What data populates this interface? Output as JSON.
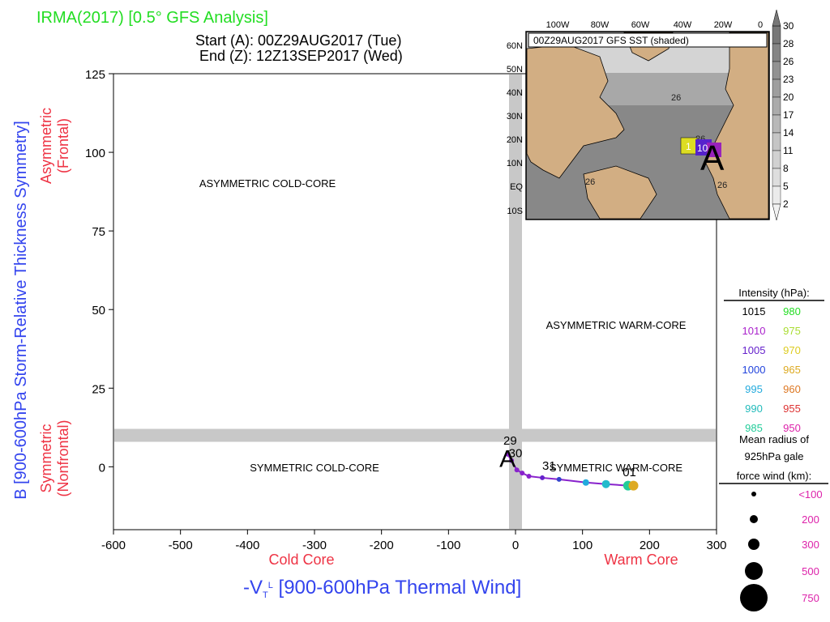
{
  "header": {
    "title": "IRMA(2017) [0.5° GFS Analysis]",
    "start": "Start (A): 00Z29AUG2017 (Tue)",
    "end": "End (Z): 12Z13SEP2017 (Wed)"
  },
  "colors": {
    "title": "#22dd22",
    "ylabel": "#3344ee",
    "xlabel": "#3344ee",
    "red_label": "#ee3344",
    "grid_band": "#c8c8c8",
    "gale_size": "#dd22aa",
    "track_main": "#8822cc",
    "track_cyan": "#22bbdd"
  },
  "chart_data": {
    "type": "scatter",
    "xlabel": "-V",
    "xlabel_sub": "T",
    "xlabel_sup": "L",
    "xlabel_rest": " [900-600hPa Thermal Wind]",
    "ylabel": "B [900-600hPa Storm-Relative Thickness Symmetry]",
    "xlim": [
      -600,
      300
    ],
    "ylim": [
      -20,
      125
    ],
    "xticks": [
      -600,
      -500,
      -400,
      -300,
      -200,
      -100,
      0,
      100,
      200,
      300
    ],
    "yticks": [
      0,
      25,
      50,
      75,
      100,
      125
    ],
    "xtick_labels": [
      "-600",
      "-500",
      "-400",
      "-300",
      "-200",
      "-100",
      "0",
      "100",
      "200",
      "300"
    ],
    "ytick_labels": [
      "0",
      "25",
      "50",
      "75",
      "100",
      "125"
    ],
    "cold_core_label": "Cold Core",
    "warm_core_label": "Warm Core",
    "asym_label": "Asymmetric",
    "asym_sub": "(Frontal)",
    "sym_label": "Symmetric",
    "sym_sub": "(Nonfrontal)",
    "quadrants": {
      "asym_cold": "ASYMMETRIC COLD-CORE",
      "asym_warm": "ASYMMETRIC WARM-CORE",
      "sym_cold": "SYMMETRIC COLD-CORE",
      "sym_warm": "SYMMETRIC WARM-CORE"
    },
    "threshold_x": 0,
    "threshold_y": 10,
    "track": {
      "points": [
        {
          "x": -12,
          "y": 4,
          "color": "#8822cc",
          "r": 3
        },
        {
          "x": -6,
          "y": 2,
          "color": "#8822cc",
          "r": 3
        },
        {
          "x": 2,
          "y": -1,
          "color": "#8822cc",
          "r": 3
        },
        {
          "x": 10,
          "y": -2,
          "color": "#8822cc",
          "r": 3
        },
        {
          "x": 20,
          "y": -3,
          "color": "#8822cc",
          "r": 3
        },
        {
          "x": 40,
          "y": -3.5,
          "color": "#6622cc",
          "r": 3
        },
        {
          "x": 65,
          "y": -4,
          "color": "#3344cc",
          "r": 3
        },
        {
          "x": 105,
          "y": -5,
          "color": "#22aadd",
          "r": 4
        },
        {
          "x": 135,
          "y": -5.5,
          "color": "#22bbcc",
          "r": 5
        },
        {
          "x": 168,
          "y": -6,
          "color": "#22cc99",
          "r": 6
        },
        {
          "x": 176,
          "y": -6,
          "color": "#ddaa22",
          "r": 6
        }
      ],
      "labels": [
        {
          "text": "A",
          "x": -12,
          "y": 3
        },
        {
          "text": "29",
          "x": -8,
          "y": 7
        },
        {
          "text": "30",
          "x": 0,
          "y": 3
        },
        {
          "text": "31",
          "x": 50,
          "y": -1
        },
        {
          "text": "01",
          "x": 170,
          "y": -3
        }
      ]
    }
  },
  "inset_map": {
    "sst_label": "00Z29AUG2017 GFS SST (shaded)",
    "lon_labels": [
      "100W",
      "80W",
      "60W",
      "40W",
      "20W",
      "0"
    ],
    "lat_labels": [
      "60N",
      "50N",
      "40N",
      "30N",
      "20N",
      "10N",
      "EQ",
      "10S"
    ],
    "contour_labels": [
      "26",
      "26",
      "26",
      "26"
    ],
    "marker_start": "A",
    "marker_label": "1",
    "marker_label2": "10",
    "colorbar_ticks": [
      "30",
      "28",
      "26",
      "23",
      "20",
      "17",
      "14",
      "11",
      "8",
      "5",
      "2"
    ]
  },
  "legend": {
    "intensity_title": "Intensity (hPa):",
    "intensity": [
      {
        "a": "1015",
        "a_color": "#000000",
        "b": "980",
        "b_color": "#22dd22"
      },
      {
        "a": "1010",
        "a_color": "#aa22cc",
        "b": "975",
        "b_color": "#aadd33"
      },
      {
        "a": "1005",
        "a_color": "#6622cc",
        "b": "970",
        "b_color": "#ddcc22"
      },
      {
        "a": "1000",
        "a_color": "#2244dd",
        "b": "965",
        "b_color": "#ddaa22"
      },
      {
        "a": "995",
        "a_color": "#22aadd",
        "b": "960",
        "b_color": "#dd7722"
      },
      {
        "a": "990",
        "a_color": "#22bbbb",
        "b": "955",
        "b_color": "#dd3333"
      },
      {
        "a": "985",
        "a_color": "#22cc99",
        "b": "950",
        "b_color": "#dd22aa"
      }
    ],
    "gale_title_1": "Mean radius of",
    "gale_title_2": "925hPa gale",
    "gale_title_3": "force wind (km):",
    "gale": [
      {
        "label": "<100",
        "r": 3
      },
      {
        "label": "200",
        "r": 5
      },
      {
        "label": "300",
        "r": 7
      },
      {
        "label": "500",
        "r": 11
      },
      {
        "label": "750",
        "r": 17
      }
    ]
  }
}
